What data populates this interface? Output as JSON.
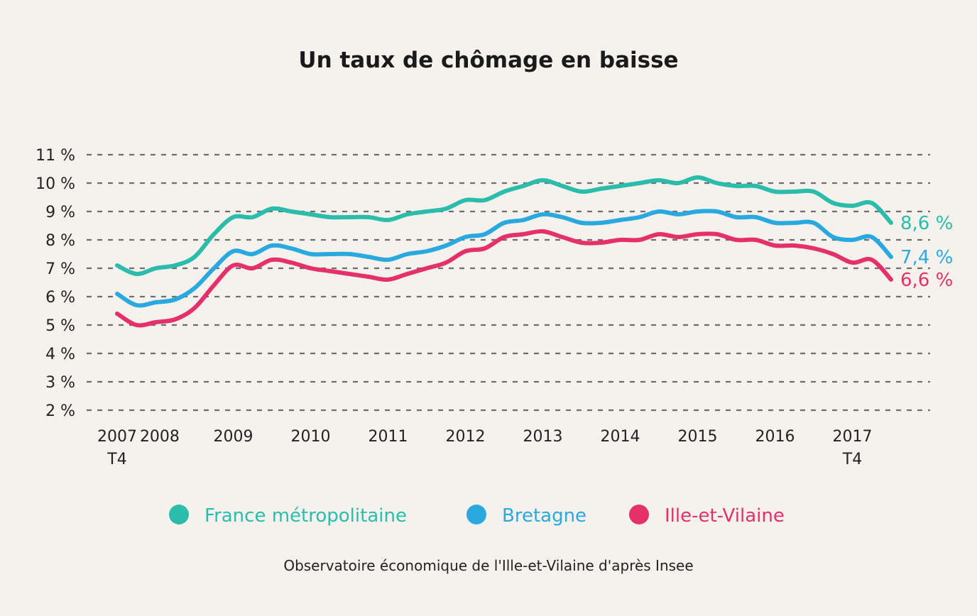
{
  "chart_data": {
    "type": "line",
    "title": "Un taux de chômage en baisse",
    "source": "Observatoire économique de l'Ille-et-Vilaine d'après Insee",
    "ylim": [
      2,
      11
    ],
    "y_ticks": [
      "11 %",
      "10 %",
      "9 %",
      "8 %",
      "7 %",
      "6 %",
      "5 %",
      "4 %",
      "3 %",
      "2 %"
    ],
    "y_tick_values": [
      11,
      10,
      9,
      8,
      7,
      6,
      5,
      4,
      3,
      2
    ],
    "grid": true,
    "legend_position": "bottom",
    "x_ticks": [
      {
        "x": 2007.75,
        "line1": "2007",
        "line2": "T4"
      },
      {
        "x": 2008.3,
        "line1": "2008",
        "line2": ""
      },
      {
        "x": 2009.25,
        "line1": "2009",
        "line2": ""
      },
      {
        "x": 2010.25,
        "line1": "2010",
        "line2": ""
      },
      {
        "x": 2011.25,
        "line1": "2011",
        "line2": ""
      },
      {
        "x": 2012.25,
        "line1": "2012",
        "line2": ""
      },
      {
        "x": 2013.25,
        "line1": "2013",
        "line2": ""
      },
      {
        "x": 2014.25,
        "line1": "2014",
        "line2": ""
      },
      {
        "x": 2015.25,
        "line1": "2015",
        "line2": ""
      },
      {
        "x": 2016.25,
        "line1": "2016",
        "line2": ""
      },
      {
        "x": 2017.25,
        "line1": "2017",
        "line2": "T4"
      }
    ],
    "x": [
      2007.75,
      2008.0,
      2008.25,
      2008.5,
      2008.75,
      2009.0,
      2009.25,
      2009.5,
      2009.75,
      2010.0,
      2010.25,
      2010.5,
      2010.75,
      2011.0,
      2011.25,
      2011.5,
      2011.75,
      2012.0,
      2012.25,
      2012.5,
      2012.75,
      2013.0,
      2013.25,
      2013.5,
      2013.75,
      2014.0,
      2014.25,
      2014.5,
      2014.75,
      2015.0,
      2015.25,
      2015.5,
      2015.75,
      2016.0,
      2016.25,
      2016.5,
      2016.75,
      2017.0,
      2017.25,
      2017.5,
      2017.75
    ],
    "series": [
      {
        "name": "France métropolitaine",
        "color": "#2bbcac",
        "end_label": "8,6 %",
        "values": [
          7.1,
          6.8,
          7.0,
          7.1,
          7.4,
          8.2,
          8.8,
          8.8,
          9.1,
          9.0,
          8.9,
          8.8,
          8.8,
          8.8,
          8.7,
          8.9,
          9.0,
          9.1,
          9.4,
          9.4,
          9.7,
          9.9,
          10.1,
          9.9,
          9.7,
          9.8,
          9.9,
          10.0,
          10.1,
          10.0,
          10.2,
          10.0,
          9.9,
          9.9,
          9.7,
          9.7,
          9.7,
          9.3,
          9.2,
          9.3,
          8.6
        ]
      },
      {
        "name": "Bretagne",
        "color": "#2aa9e0",
        "end_label": "7,4 %",
        "values": [
          6.1,
          5.7,
          5.8,
          5.9,
          6.3,
          7.0,
          7.6,
          7.5,
          7.8,
          7.7,
          7.5,
          7.5,
          7.5,
          7.4,
          7.3,
          7.5,
          7.6,
          7.8,
          8.1,
          8.2,
          8.6,
          8.7,
          8.9,
          8.8,
          8.6,
          8.6,
          8.7,
          8.8,
          9.0,
          8.9,
          9.0,
          9.0,
          8.8,
          8.8,
          8.6,
          8.6,
          8.6,
          8.1,
          8.0,
          8.1,
          7.4
        ]
      },
      {
        "name": "Ille-et-Vilaine",
        "color": "#e6306b",
        "end_label": "6,6 %",
        "values": [
          5.4,
          5.0,
          5.1,
          5.2,
          5.6,
          6.4,
          7.1,
          7.0,
          7.3,
          7.2,
          7.0,
          6.9,
          6.8,
          6.7,
          6.6,
          6.8,
          7.0,
          7.2,
          7.6,
          7.7,
          8.1,
          8.2,
          8.3,
          8.1,
          7.9,
          7.9,
          8.0,
          8.0,
          8.2,
          8.1,
          8.2,
          8.2,
          8.0,
          8.0,
          7.8,
          7.8,
          7.7,
          7.5,
          7.2,
          7.3,
          6.6
        ]
      }
    ]
  }
}
